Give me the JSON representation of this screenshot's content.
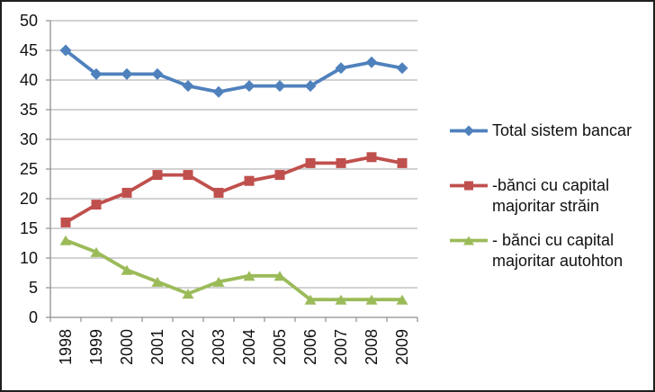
{
  "chart_data": {
    "type": "line",
    "title": "",
    "xlabel": "",
    "ylabel": "",
    "categories": [
      "1998",
      "1999",
      "2000",
      "2001",
      "2002",
      "2003",
      "2004",
      "2005",
      "2006",
      "2007",
      "2008",
      "2009"
    ],
    "series": [
      {
        "name": "Total sistem bancar",
        "color": "#4F81BD",
        "marker": "diamond",
        "values": [
          45,
          41,
          41,
          41,
          39,
          38,
          39,
          39,
          39,
          42,
          43,
          42
        ]
      },
      {
        "name": "-bănci cu capital majoritar străin",
        "color": "#C0504D",
        "marker": "square",
        "values": [
          16,
          19,
          21,
          24,
          24,
          21,
          23,
          24,
          26,
          26,
          27,
          26
        ]
      },
      {
        "name": "- bănci cu capital majoritar autohton",
        "color": "#9BBB59",
        "marker": "triangle",
        "values": [
          13,
          11,
          8,
          6,
          4,
          6,
          7,
          7,
          3,
          3,
          3,
          3
        ]
      }
    ],
    "ylim": [
      0,
      50
    ],
    "ytick_step": 5,
    "yticks": [
      0,
      5,
      10,
      15,
      20,
      25,
      30,
      35,
      40,
      45,
      50
    ],
    "grid": true,
    "legend_position": "right",
    "colors": {
      "gridline": "#A6A6A6",
      "axis": "#8E8E8E",
      "text": "#111111",
      "background": "#FFFFFF",
      "border": "#1F1F1F"
    }
  }
}
